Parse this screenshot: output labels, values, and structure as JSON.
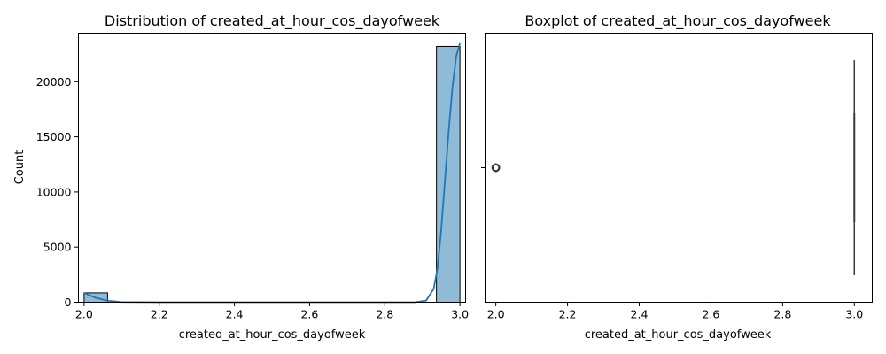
{
  "chart_data": [
    {
      "type": "histogram",
      "title": "Distribution of created_at_hour_cos_dayofweek",
      "xlabel": "created_at_hour_cos_dayofweek",
      "ylabel": "Count",
      "xlim": [
        1.985,
        3.015
      ],
      "ylim": [
        0,
        24400
      ],
      "xticks": [
        2.0,
        2.2,
        2.4,
        2.6,
        2.8,
        3.0
      ],
      "xtick_labels": [
        "2.0",
        "2.2",
        "2.4",
        "2.6",
        "2.8",
        "3.0"
      ],
      "yticks": [
        0,
        5000,
        10000,
        15000,
        20000
      ],
      "ytick_labels": [
        "0",
        "5000",
        "10000",
        "15000",
        "20000"
      ],
      "bar_width": 0.0625,
      "bars": [
        {
          "x": 2.0,
          "count": 850
        },
        {
          "x": 2.9375,
          "count": 23200
        }
      ],
      "kde": {
        "x": [
          2.0,
          2.01,
          2.03,
          2.06,
          2.1,
          2.2,
          2.4,
          2.6,
          2.8,
          2.88,
          2.91,
          2.93,
          2.94,
          2.95,
          2.96,
          2.97,
          2.98,
          2.99,
          3.0
        ],
        "y": [
          850,
          700,
          420,
          150,
          20,
          0,
          0,
          0,
          0,
          0,
          150,
          1200,
          3000,
          6500,
          11000,
          15500,
          19500,
          22300,
          23500
        ]
      },
      "bar_color": "#1f77b4",
      "grid": false
    },
    {
      "type": "boxplot",
      "title": "Boxplot of created_at_hour_cos_dayofweek",
      "xlabel": "created_at_hour_cos_dayofweek",
      "xlim": [
        1.97,
        3.05
      ],
      "xticks": [
        2.0,
        2.2,
        2.4,
        2.6,
        2.8,
        3.0
      ],
      "xtick_labels": [
        "2.0",
        "2.2",
        "2.4",
        "2.6",
        "2.8",
        "3.0"
      ],
      "box": {
        "q1": 3.0,
        "median": 3.0,
        "q3": 3.0,
        "whisker_low": 3.0,
        "whisker_high": 3.0
      },
      "outliers": [
        2.0
      ],
      "grid": false
    }
  ]
}
